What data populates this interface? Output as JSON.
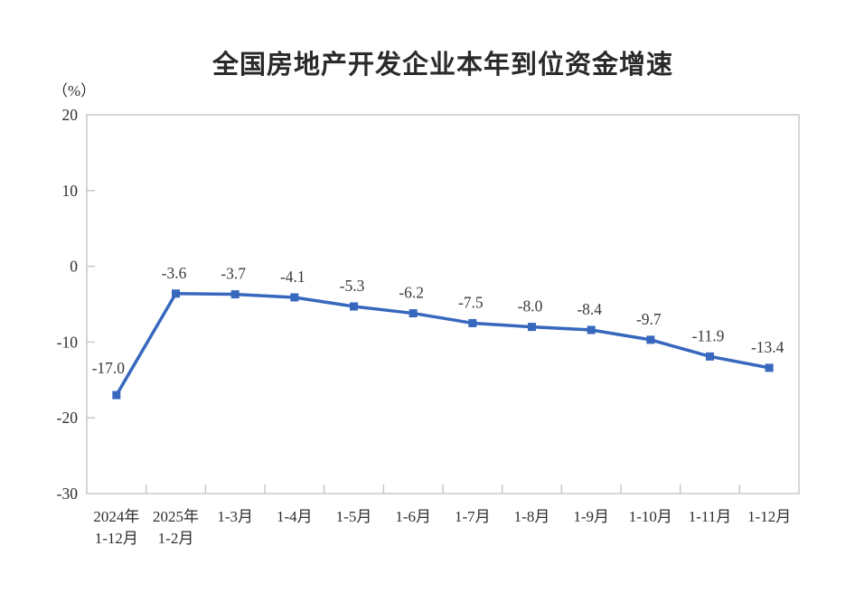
{
  "chart_data": {
    "type": "line",
    "title": "全国房地产开发企业本年到位资金增速",
    "unit_label": "（%）",
    "categories": [
      [
        "2024年",
        "1-12月"
      ],
      [
        "2025年",
        "1-2月"
      ],
      [
        "1-3月"
      ],
      [
        "1-4月"
      ],
      [
        "1-5月"
      ],
      [
        "1-6月"
      ],
      [
        "1-7月"
      ],
      [
        "1-8月"
      ],
      [
        "1-9月"
      ],
      [
        "1-10月"
      ],
      [
        "1-11月"
      ],
      [
        "1-12月"
      ]
    ],
    "values": [
      -17.0,
      -3.6,
      -3.7,
      -4.1,
      -5.3,
      -6.2,
      -7.5,
      -8.0,
      -8.4,
      -9.7,
      -11.9,
      -13.4
    ],
    "point_labels": [
      "-17.0",
      "-3.6",
      "-3.7",
      "-4.1",
      "-5.3",
      "-6.2",
      "-7.5",
      "-8.0",
      "-8.4",
      "-9.7",
      "-11.9",
      "-13.4"
    ],
    "xlabel": "",
    "ylabel": "（%）",
    "ylim": [
      -30,
      20
    ],
    "yticks": [
      20,
      10,
      0,
      -10,
      -20,
      -30
    ],
    "grid": false,
    "legend_position": "none",
    "line_color": "#3768be",
    "marker_shape": "square",
    "frame_color": "#c8c8c8",
    "axis_text_color": "#2e2e2e",
    "label_text_color": "#3a3a3a"
  }
}
